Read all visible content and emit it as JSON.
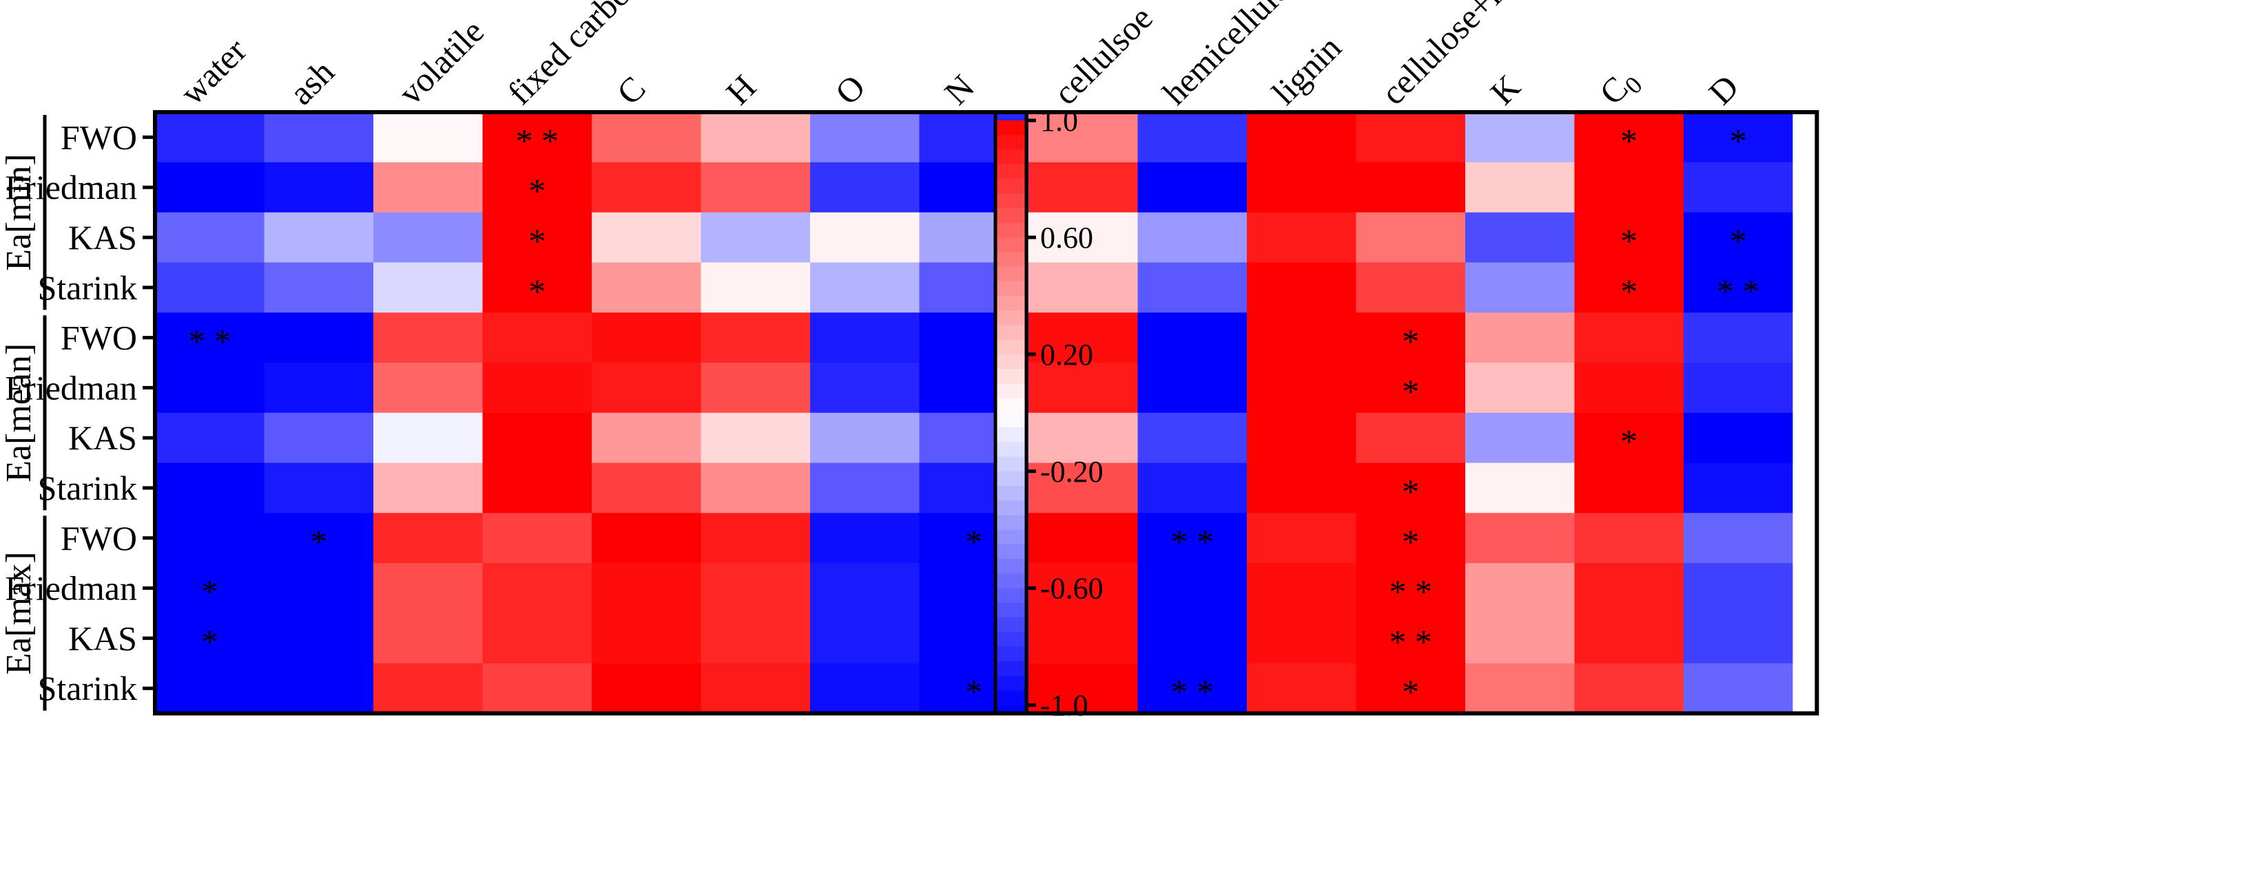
{
  "chart_data": {
    "type": "heatmap",
    "columns": [
      "water",
      "ash",
      "volatile",
      "fixed carbon",
      "C",
      "H",
      "O",
      "N",
      "cellulsoe",
      "hemicellulose",
      "lignin",
      "cellulose+lignin",
      "K",
      "C0",
      "D"
    ],
    "column_subscripts": {
      "C0": {
        "base": "C",
        "sub": "0"
      }
    },
    "groups": [
      {
        "name": "Ea[min]",
        "rows": [
          "FWO",
          "Friedman",
          "KAS",
          "Starink"
        ]
      },
      {
        "name": "Ea[mean]",
        "rows": [
          "FWO",
          "Friedman",
          "KAS",
          "Starink"
        ]
      },
      {
        "name": "Ea[max]",
        "rows": [
          "FWO",
          "Friedman",
          "KAS",
          "Starink"
        ]
      }
    ],
    "values": [
      [
        -0.85,
        -0.7,
        0.03,
        1.0,
        0.6,
        0.3,
        -0.5,
        -0.85,
        0.5,
        -0.8,
        1.0,
        0.9,
        -0.3,
        1.0,
        -0.95
      ],
      [
        -1.0,
        -0.95,
        0.45,
        1.0,
        0.85,
        0.65,
        -0.8,
        -1.0,
        0.85,
        -1.0,
        1.0,
        1.0,
        0.2,
        1.0,
        -0.85
      ],
      [
        -0.6,
        -0.3,
        -0.45,
        1.0,
        0.15,
        -0.3,
        0.05,
        -0.35,
        0.05,
        -0.4,
        0.9,
        0.55,
        -0.7,
        1.0,
        -1.0
      ],
      [
        -0.75,
        -0.6,
        -0.15,
        1.0,
        0.4,
        0.05,
        -0.3,
        -0.65,
        0.3,
        -0.65,
        1.0,
        0.75,
        -0.45,
        1.0,
        -1.0
      ],
      [
        -1.0,
        -1.0,
        0.75,
        0.9,
        0.95,
        0.85,
        -0.9,
        -1.0,
        0.95,
        -1.0,
        1.0,
        1.0,
        0.4,
        0.9,
        -0.8
      ],
      [
        -1.0,
        -0.95,
        0.6,
        0.95,
        0.9,
        0.7,
        -0.85,
        -1.0,
        0.9,
        -1.0,
        1.0,
        1.0,
        0.25,
        0.95,
        -0.85
      ],
      [
        -0.85,
        -0.65,
        -0.05,
        1.0,
        0.4,
        0.15,
        -0.35,
        -0.65,
        0.3,
        -0.75,
        1.0,
        0.8,
        -0.4,
        1.0,
        -1.0
      ],
      [
        -1.0,
        -0.9,
        0.3,
        1.0,
        0.75,
        0.45,
        -0.65,
        -0.9,
        0.7,
        -0.9,
        1.0,
        1.0,
        0.05,
        1.0,
        -0.95
      ],
      [
        -1.0,
        -1.0,
        0.85,
        0.75,
        1.0,
        0.9,
        -0.95,
        -1.0,
        1.0,
        -1.0,
        0.9,
        1.0,
        0.65,
        0.8,
        -0.6
      ],
      [
        -1.0,
        -1.0,
        0.7,
        0.85,
        0.95,
        0.85,
        -0.9,
        -1.0,
        0.95,
        -1.0,
        0.95,
        1.0,
        0.4,
        0.9,
        -0.75
      ],
      [
        -1.0,
        -1.0,
        0.7,
        0.85,
        0.95,
        0.85,
        -0.9,
        -1.0,
        0.95,
        -1.0,
        0.95,
        1.0,
        0.4,
        0.9,
        -0.75
      ],
      [
        -1.0,
        -1.0,
        0.85,
        0.75,
        1.0,
        0.9,
        -0.95,
        -1.0,
        1.0,
        -1.0,
        0.9,
        1.0,
        0.55,
        0.8,
        -0.6
      ]
    ],
    "significance": [
      [
        "",
        "",
        "",
        "**",
        "",
        "",
        "",
        "",
        "",
        "",
        "",
        "",
        "",
        "*",
        "*"
      ],
      [
        "",
        "",
        "",
        "*",
        "",
        "",
        "",
        "",
        "",
        "",
        "",
        "",
        "",
        "",
        ""
      ],
      [
        "",
        "",
        "",
        "*",
        "",
        "",
        "",
        "",
        "",
        "",
        "",
        "",
        "",
        "*",
        "*"
      ],
      [
        "",
        "",
        "",
        "*",
        "",
        "",
        "",
        "",
        "",
        "",
        "",
        "",
        "",
        "*",
        "**"
      ],
      [
        "**",
        "",
        "",
        "",
        "",
        "",
        "",
        "",
        "",
        "",
        "",
        "*",
        "",
        "",
        ""
      ],
      [
        "",
        "",
        "",
        "",
        "",
        "",
        "",
        "",
        "",
        "",
        "",
        "*",
        "",
        "",
        ""
      ],
      [
        "",
        "",
        "",
        "",
        "",
        "",
        "",
        "",
        "",
        "",
        "",
        "",
        "",
        "*",
        ""
      ],
      [
        "",
        "",
        "",
        "",
        "",
        "",
        "",
        "",
        "",
        "",
        "",
        "*",
        "",
        "",
        ""
      ],
      [
        "",
        "*",
        "",
        "",
        "",
        "",
        "",
        "*",
        "",
        "**",
        "",
        "*",
        "",
        "",
        ""
      ],
      [
        "*",
        "",
        "",
        "",
        "",
        "",
        "",
        "",
        "",
        "",
        "",
        "**",
        "",
        "",
        ""
      ],
      [
        "*",
        "",
        "",
        "",
        "",
        "",
        "",
        "",
        "",
        "",
        "",
        "**",
        "",
        "",
        ""
      ],
      [
        "",
        "",
        "",
        "",
        "",
        "",
        "",
        "*",
        "",
        "**",
        "",
        "*",
        "",
        "",
        ""
      ]
    ],
    "colorbar": {
      "min": -1.0,
      "max": 1.0,
      "tick_labels": [
        "1.0",
        "0.60",
        "0.20",
        "-0.20",
        "-0.60",
        "-1.0"
      ],
      "tick_values": [
        1.0,
        0.6,
        0.2,
        -0.2,
        -0.6,
        -1.0
      ],
      "steps": 40,
      "color_low": "#0000ff",
      "color_mid": "#ffffff",
      "color_high": "#ff0000"
    }
  }
}
